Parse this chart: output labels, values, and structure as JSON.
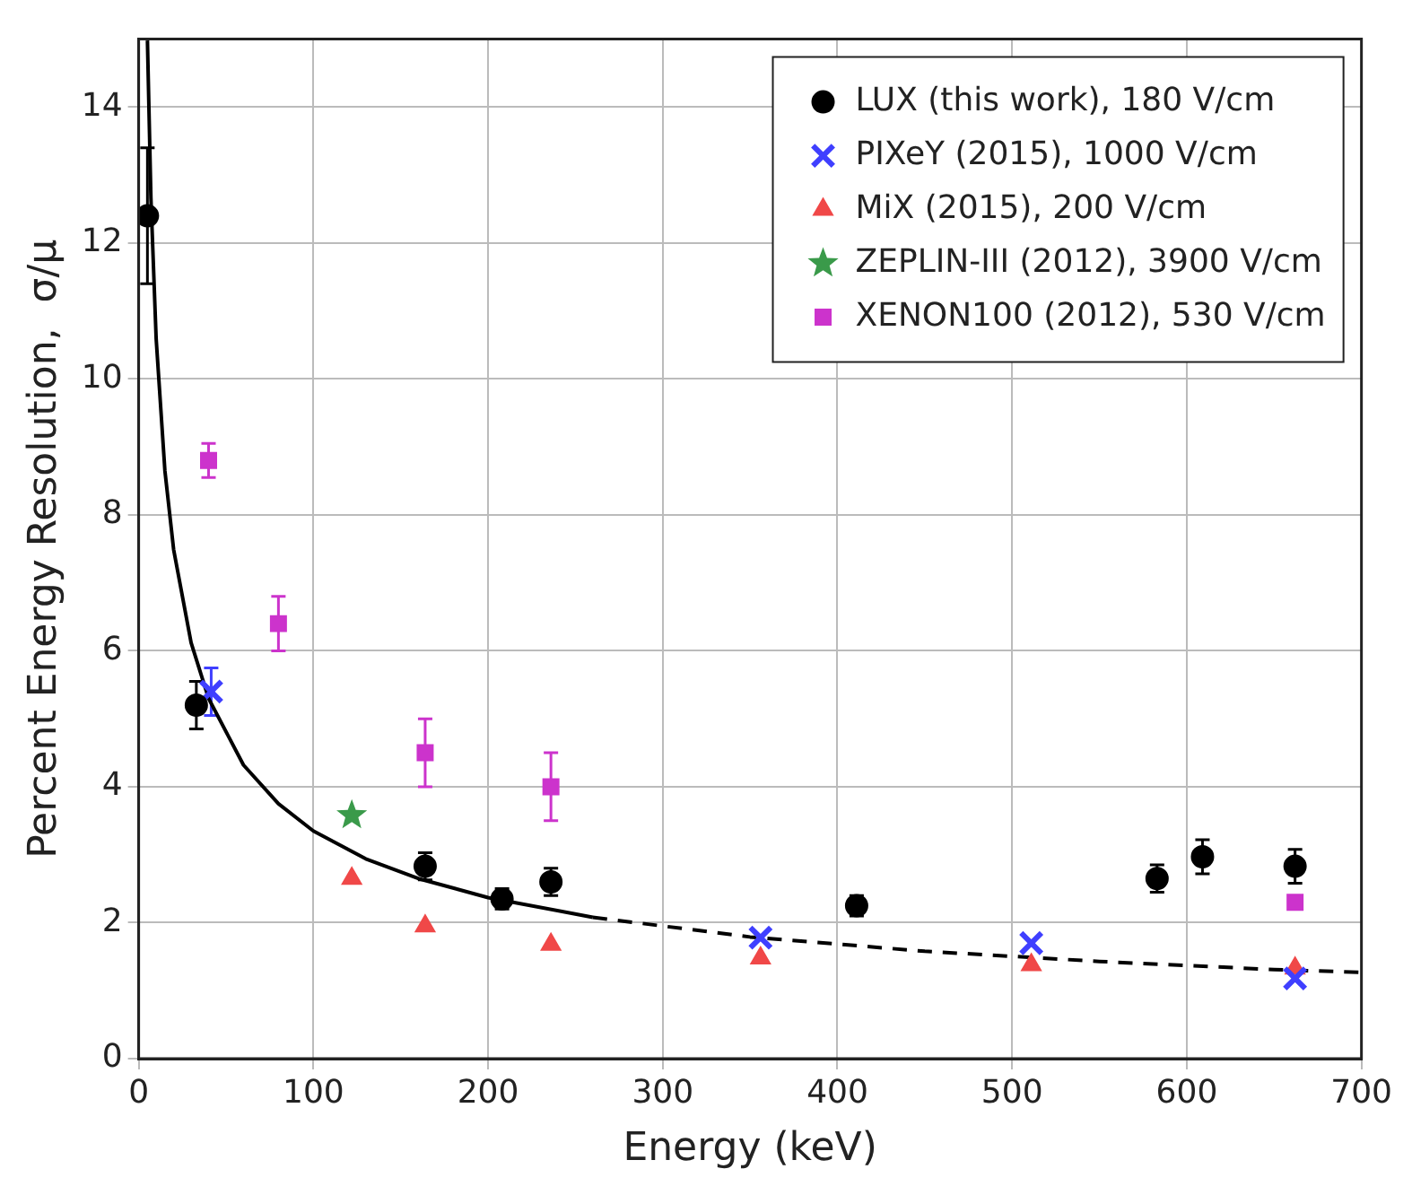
{
  "chart_data": {
    "type": "scatter",
    "xlabel": "Energy (keV)",
    "ylabel": "Percent Energy Resolution,  σ/μ",
    "xlim": [
      0,
      700
    ],
    "ylim": [
      0,
      15
    ],
    "xticks": [
      0,
      100,
      200,
      300,
      400,
      500,
      600,
      700
    ],
    "yticks": [
      0,
      2,
      4,
      6,
      8,
      10,
      12,
      14
    ],
    "grid": true,
    "legend": "top right",
    "series": [
      {
        "name": "LUX (this work), 180 V/cm",
        "color": "#000000",
        "marker": "circle",
        "x": [
          5,
          33,
          164,
          208,
          236,
          411,
          583,
          609,
          662
        ],
        "values": [
          12.4,
          5.2,
          2.83,
          2.35,
          2.6,
          2.25,
          2.65,
          2.97,
          2.83
        ],
        "errors": [
          1.0,
          0.35,
          0.2,
          0.15,
          0.2,
          0.15,
          0.2,
          0.25,
          0.25
        ]
      },
      {
        "name": "PIXeY (2015), 1000 V/cm",
        "color": "#3f3fff",
        "marker": "cross",
        "x": [
          41.5,
          356,
          511,
          662
        ],
        "values": [
          5.4,
          1.78,
          1.7,
          1.18
        ],
        "errors": [
          0.35,
          null,
          null,
          null
        ]
      },
      {
        "name": "MiX (2015), 200 V/cm",
        "color": "#f04848",
        "marker": "triangle",
        "x": [
          122,
          164,
          236,
          356,
          511,
          662
        ],
        "values": [
          2.65,
          1.95,
          1.68,
          1.48,
          1.38,
          1.33
        ]
      },
      {
        "name": "ZEPLIN-III (2012), 3900 V/cm",
        "color": "#3a9a4a",
        "marker": "star",
        "x": [
          122
        ],
        "values": [
          3.58
        ]
      },
      {
        "name": "XENON100 (2012), 530 V/cm",
        "color": "#cc33cc",
        "marker": "square",
        "x": [
          40,
          80,
          164,
          236,
          662
        ],
        "values": [
          8.8,
          6.4,
          4.5,
          4.0,
          2.3
        ],
        "errors": [
          0.25,
          0.4,
          0.5,
          0.5,
          null
        ]
      },
      {
        "type": "line",
        "color": "#000000",
        "line_style": "solid",
        "marker": "none",
        "x": [
          5,
          7,
          10,
          15,
          20,
          30,
          40,
          60,
          80,
          100,
          130,
          160,
          200,
          260
        ],
        "values": [
          14.98,
          12.66,
          10.59,
          8.65,
          7.49,
          6.12,
          5.3,
          4.32,
          3.75,
          3.35,
          2.94,
          2.65,
          2.37,
          2.08
        ]
      },
      {
        "type": "line",
        "color": "#000000",
        "line_style": "dashed",
        "marker": "none",
        "x": [
          260,
          350,
          450,
          550,
          650,
          700
        ],
        "values": [
          2.08,
          1.79,
          1.58,
          1.43,
          1.31,
          1.27
        ]
      }
    ]
  }
}
